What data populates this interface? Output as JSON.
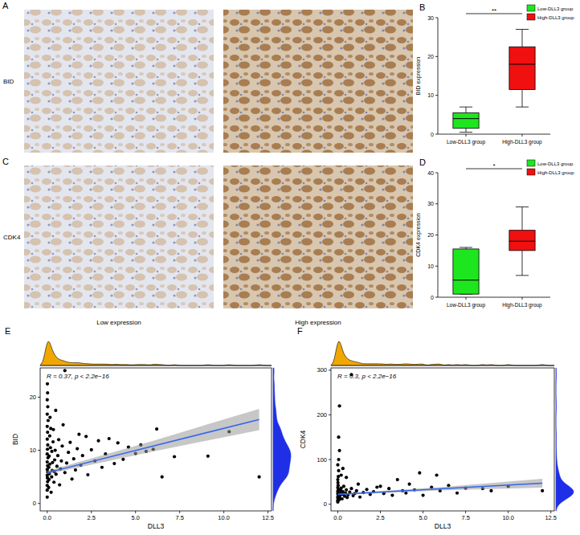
{
  "figure": {
    "images": [
      {
        "title": "A",
        "row_label": "BID"
      },
      {
        "title": "C",
        "row_label": "CDK4"
      }
    ],
    "column_labels": [
      "Low expression",
      "High expression"
    ]
  },
  "chart_data": [
    {
      "type": "box",
      "title": "B",
      "ylabel": "BID expression",
      "categories": [
        "Low-DLL3 group",
        "High-DLL3 group"
      ],
      "series": [
        {
          "name": "Low-DLL3 group",
          "color": "#1ee61e",
          "min": 0.5,
          "q1": 1.5,
          "median": 4,
          "q3": 5.5,
          "max": 7
        },
        {
          "name": "High-DLL3 group",
          "color": "#f01010",
          "min": 7,
          "q1": 11.5,
          "median": 18,
          "q3": 22.5,
          "max": 27
        }
      ],
      "ylim": [
        0,
        30
      ],
      "yticks": [
        0,
        10,
        20,
        30
      ],
      "legend": "top-right",
      "annotation": "**"
    },
    {
      "type": "box",
      "title": "D",
      "ylabel": "CDK4 expression",
      "categories": [
        "Low-DLL3 group",
        "High-DLL3 group"
      ],
      "series": [
        {
          "name": "Low-DLL3 group",
          "color": "#1ee61e",
          "min": 1,
          "q1": 1,
          "median": 5.5,
          "q3": 15.5,
          "max": 16
        },
        {
          "name": "High-DLL3 group",
          "color": "#f01010",
          "min": 7,
          "q1": 15,
          "median": 18,
          "q3": 21.5,
          "max": 29
        }
      ],
      "ylim": [
        0,
        40
      ],
      "yticks": [
        0,
        10,
        20,
        30,
        40
      ],
      "legend": "top-right",
      "annotation": "*"
    },
    {
      "type": "scatter",
      "title": "E",
      "xlabel": "DLL3",
      "ylabel": "BID",
      "annotation": "R = 0.37, p < 2.2e−16",
      "color": "#000000",
      "x": [
        0,
        0,
        0,
        0.02,
        0.01,
        0,
        0.03,
        0,
        0.02,
        0,
        0.04,
        0,
        0.01,
        0.03,
        0,
        0.02,
        0,
        0.05,
        0,
        0.03,
        0,
        0.02,
        0.01,
        0.08,
        0.1,
        0.12,
        0.09,
        0.15,
        0.11,
        0.18,
        0.14,
        0.2,
        0.16,
        0.22,
        0.25,
        0.28,
        0.3,
        0.26,
        0.33,
        0.35,
        0.38,
        0.4,
        0.42,
        0.45,
        0.48,
        0.5,
        0.55,
        0.6,
        0.65,
        0.7,
        0.75,
        0.8,
        0.85,
        0.9,
        1.0,
        1.0,
        1.1,
        1.2,
        1.3,
        1.4,
        1.5,
        1.6,
        1.7,
        1.8,
        1.9,
        2.0,
        2.2,
        2.3,
        2.5,
        2.7,
        2.9,
        3.1,
        3.3,
        3.5,
        3.8,
        4.0,
        4.3,
        4.6,
        5.0,
        5.3,
        5.6,
        6.0,
        6.2,
        6.5,
        7.2,
        9.1,
        10.3,
        12.0
      ],
      "values": [
        1.2,
        2.5,
        3.4,
        4.1,
        4.8,
        5.3,
        5.9,
        6.4,
        7.1,
        7.8,
        8.6,
        9.3,
        10.2,
        11.0,
        12.1,
        13.4,
        14.5,
        15.6,
        16.8,
        18.2,
        19.5,
        20.8,
        22.5,
        3.0,
        4.5,
        5.6,
        6.8,
        7.4,
        8.9,
        10.5,
        12.7,
        14.1,
        16.2,
        2.1,
        5.0,
        6.2,
        7.7,
        9.8,
        11.6,
        13.9,
        4.0,
        6.0,
        8.2,
        10.0,
        17.5,
        5.5,
        7.0,
        9.0,
        12.0,
        3.5,
        6.5,
        8.0,
        10.8,
        14.8,
        25.0,
        5.8,
        7.6,
        9.6,
        11.5,
        4.6,
        8.4,
        6.3,
        10.3,
        13.0,
        7.2,
        9.0,
        12.6,
        5.4,
        10.1,
        8.0,
        11.8,
        6.8,
        9.3,
        12.2,
        7.5,
        11.4,
        8.3,
        10.6,
        9.4,
        11.0,
        9.8,
        10.2,
        14.0,
        5.0,
        8.8,
        8.9,
        13.5,
        5.0
      ],
      "trend": {
        "x": [
          0,
          6,
          12
        ],
        "y": [
          5.8,
          10.8,
          15.8
        ],
        "lower": [
          5.5,
          9.8,
          13.8
        ],
        "upper": [
          6.1,
          11.8,
          17.8
        ]
      },
      "xlim": [
        -0.4,
        12.7
      ],
      "ylim": [
        -1.4,
        25.5
      ],
      "xticks": [
        {
          "value": 0,
          "label": "0.0"
        },
        {
          "value": 2.5,
          "label": "2.5"
        },
        {
          "value": 5,
          "label": "5.0"
        },
        {
          "value": 7.5,
          "label": "7.5"
        },
        {
          "value": 10,
          "label": "10.0"
        },
        {
          "value": 12.5,
          "label": "12.5"
        }
      ],
      "yticks": [
        0,
        10,
        20
      ]
    },
    {
      "type": "scatter",
      "title": "F",
      "xlabel": "DLL3",
      "ylabel": "CDK4",
      "annotation": "R = 0.3, p < 2.2e−16",
      "color": "#000000",
      "x": [
        0,
        0,
        0.02,
        0,
        0.01,
        0.03,
        0,
        0.02,
        0,
        0.04,
        0,
        0.02,
        0.01,
        0,
        0.03,
        0.05,
        0,
        0.05,
        0.1,
        0.05,
        0.1,
        0.08,
        0.1,
        0.12,
        0.15,
        0.18,
        0.2,
        0.2,
        0.25,
        0.28,
        0.3,
        0.3,
        0.35,
        0.4,
        0.45,
        0.5,
        0.5,
        0.55,
        0.6,
        0.7,
        0.8,
        0.8,
        0.9,
        1.0,
        1.1,
        1.2,
        1.3,
        1.5,
        1.7,
        1.9,
        2.1,
        2.3,
        2.5,
        2.7,
        3.0,
        3.2,
        3.5,
        3.8,
        4.0,
        4.2,
        4.5,
        4.8,
        5.0,
        5.5,
        5.8,
        6.0,
        6.5,
        7.0,
        7.5,
        8.5,
        9.0,
        10.0,
        12.0
      ],
      "values": [
        5,
        8,
        11,
        14,
        17,
        20,
        23,
        26,
        29,
        33,
        37,
        42,
        48,
        55,
        62,
        75,
        88,
        100,
        120,
        150,
        220,
        10,
        15,
        19,
        24,
        30,
        36,
        65,
        12,
        22,
        28,
        80,
        40,
        18,
        25,
        32,
        60,
        15,
        21,
        27,
        290,
        35,
        19,
        24,
        30,
        45,
        16,
        26,
        33,
        22,
        28,
        38,
        40,
        24,
        35,
        20,
        55,
        30,
        25,
        45,
        32,
        70,
        20,
        38,
        65,
        30,
        42,
        25,
        36,
        35,
        30,
        40,
        30
      ],
      "trend": {
        "x": [
          0,
          6,
          12
        ],
        "y": [
          22,
          34.5,
          47
        ],
        "lower": [
          20.5,
          31,
          37
        ],
        "upper": [
          23.5,
          38,
          57
        ]
      },
      "xlim": [
        -0.4,
        12.7
      ],
      "ylim": [
        -15,
        305
      ],
      "xticks": [
        {
          "value": 0,
          "label": "0.0"
        },
        {
          "value": 2.5,
          "label": "2.5"
        },
        {
          "value": 5,
          "label": "5.0"
        },
        {
          "value": 7.5,
          "label": "7.5"
        },
        {
          "value": 10,
          "label": "10.0"
        },
        {
          "value": 12.5,
          "label": "12.5"
        }
      ],
      "yticks": [
        0,
        100,
        200,
        300
      ]
    }
  ]
}
